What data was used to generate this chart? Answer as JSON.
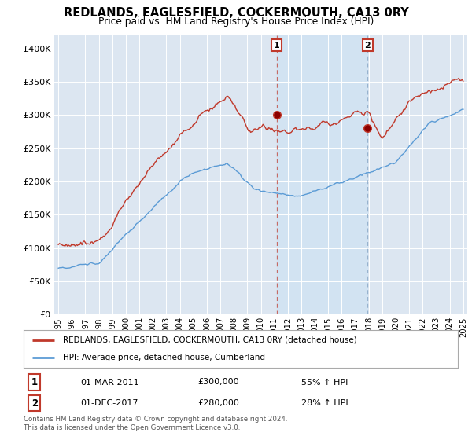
{
  "title": "REDLANDS, EAGLESFIELD, COCKERMOUTH, CA13 0RY",
  "subtitle": "Price paid vs. HM Land Registry's House Price Index (HPI)",
  "legend_line1": "REDLANDS, EAGLESFIELD, COCKERMOUTH, CA13 0RY (detached house)",
  "legend_line2": "HPI: Average price, detached house, Cumberland",
  "annotation1_date": "01-MAR-2011",
  "annotation1_price": "£300,000",
  "annotation1_hpi": "55% ↑ HPI",
  "annotation2_date": "01-DEC-2017",
  "annotation2_price": "£280,000",
  "annotation2_hpi": "28% ↑ HPI",
  "footer": "Contains HM Land Registry data © Crown copyright and database right 2024.\nThis data is licensed under the Open Government Licence v3.0.",
  "ylim": [
    0,
    420000
  ],
  "yticks": [
    0,
    50000,
    100000,
    150000,
    200000,
    250000,
    300000,
    350000,
    400000
  ],
  "red_color": "#c0392b",
  "blue_color": "#5b9bd5",
  "bg_color": "#dce6f1",
  "shade_color": "#d6e4f0",
  "sale1_x": 2011.17,
  "sale1_y": 300000,
  "sale2_x": 2017.92,
  "sale2_y": 280000,
  "xmin": 1995,
  "xmax": 2025
}
